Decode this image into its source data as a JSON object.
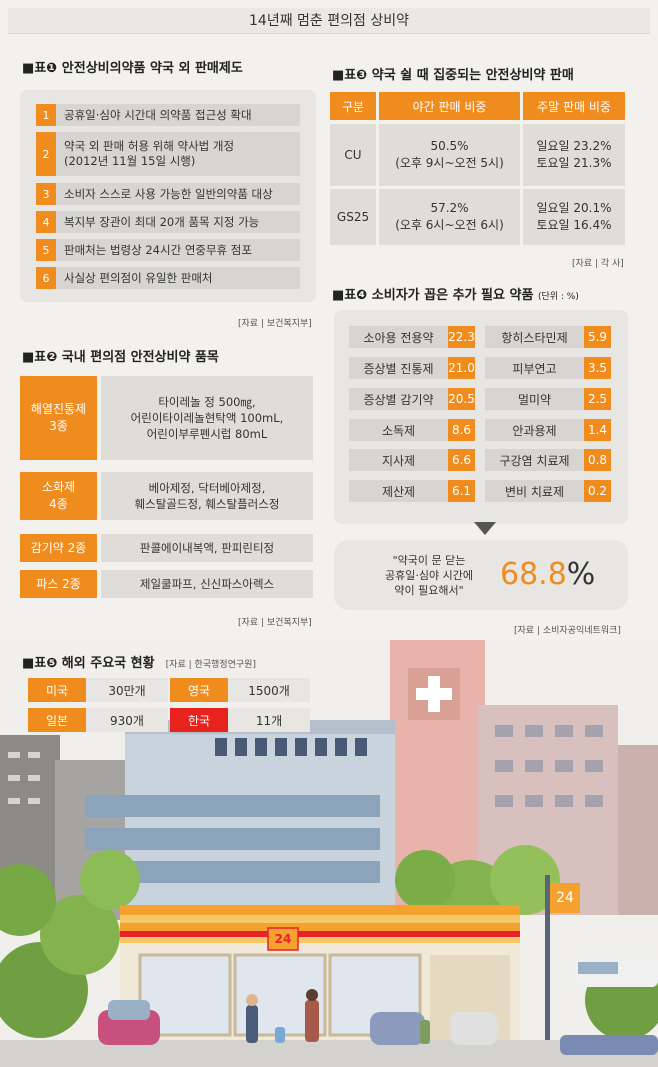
{
  "title": "14년째 멈춘 편의점 상비약",
  "table1": {
    "label": "표❶ 안전상비의약품 약국 외 판매제도",
    "items": [
      {
        "num": "1",
        "text": "공휴일·심야 시간대 의약품 접근성 확대"
      },
      {
        "num": "2",
        "line1": "약국 외 판매 허용 위해 약사법 개정",
        "line2": "(2012년 11월 15일 시행)"
      },
      {
        "num": "3",
        "text": "소비자 스스로 사용 가능한 일반의약품 대상"
      },
      {
        "num": "4",
        "text": "복지부 장관이 최대 20개 품목 지정 가능"
      },
      {
        "num": "5",
        "text": "판매처는 법령상 24시간 연중무휴 점포"
      },
      {
        "num": "6",
        "text": "사실상 편의점이 유일한 판매처"
      }
    ],
    "source": "[자료 | 보건복지부]"
  },
  "table2": {
    "label": "표❷ 국내 편의점 안전상비약 품목",
    "rows": [
      {
        "cat1": "해열진통제",
        "cat2": "3종",
        "l1": "타이레놀 정 500㎎,",
        "l2": "어린이타이레놀현탁액 100mL,",
        "l3": "어린이부루펜시럽 80mL"
      },
      {
        "cat1": "소화제",
        "cat2": "4종",
        "l1": "베아제정, 닥터베아제정,",
        "l2": "훼스탈골드정, 훼스탈플러스정",
        "l3": ""
      },
      {
        "cat1": "감기약 2종",
        "cat2": "",
        "l1": "판콜에이내복액, 판피린티정",
        "l2": "",
        "l3": ""
      },
      {
        "cat1": "파스 2종",
        "cat2": "",
        "l1": "제일쿨파프, 신신파스아렉스",
        "l2": "",
        "l3": ""
      }
    ],
    "source": "[자료 | 보건복지부]"
  },
  "table3": {
    "label": "표❸ 약국 쉴 때 집중되는 안전상비약 판매",
    "headers": [
      "구분",
      "야간 판매 비중",
      "주말 판매 비중"
    ],
    "rows": [
      {
        "name": "CU",
        "night1": "50.5%",
        "night2": "(오후 9시~오전 5시)",
        "wk1": "일요일 23.2%",
        "wk2": "토요일 21.3%"
      },
      {
        "name": "GS25",
        "night1": "57.2%",
        "night2": "(오후 6시~오전 6시)",
        "wk1": "일요일 20.1%",
        "wk2": "토요일 16.4%"
      }
    ],
    "source": "[자료 | 각 사]"
  },
  "table4": {
    "label": "표❹ 소비자가 꼽은 추가 필요 약품",
    "unit": "(단위 : %)",
    "left": [
      {
        "name": "소아용 전용약",
        "value": "22.3"
      },
      {
        "name": "증상별 진통제",
        "value": "21.0"
      },
      {
        "name": "증상별 감기약",
        "value": "20.5"
      },
      {
        "name": "소독제",
        "value": "8.6"
      },
      {
        "name": "지사제",
        "value": "6.6"
      },
      {
        "name": "제산제",
        "value": "6.1"
      }
    ],
    "right": [
      {
        "name": "항히스타민제",
        "value": "5.9"
      },
      {
        "name": "피부연고",
        "value": "3.5"
      },
      {
        "name": "멀미약",
        "value": "2.5"
      },
      {
        "name": "안과용제",
        "value": "1.4"
      },
      {
        "name": "구강염 치료제",
        "value": "0.8"
      },
      {
        "name": "변비 치료제",
        "value": "0.2"
      }
    ],
    "quote1": "\"약국이 문 닫는",
    "quote2": "공휴일·심야 시간에",
    "quote3": "약이 필요해서\"",
    "stat_num": "68.8",
    "stat_unit": "%",
    "source": "[자료 | 소비자공익네트워크]"
  },
  "table5": {
    "label": "표❺ 해외 주요국 현황",
    "source": "[자료 | 한국행정연구원]",
    "items": [
      {
        "country": "미국",
        "count": "30만개",
        "color": "#f08c1e"
      },
      {
        "country": "영국",
        "count": "1500개",
        "color": "#f08c1e"
      },
      {
        "country": "일본",
        "count": "930개",
        "color": "#f08c1e"
      },
      {
        "country": "한국",
        "count": "11개",
        "color": "#e8221c"
      }
    ]
  },
  "scene": {
    "store_sign": "24",
    "pole_sign": "24"
  }
}
